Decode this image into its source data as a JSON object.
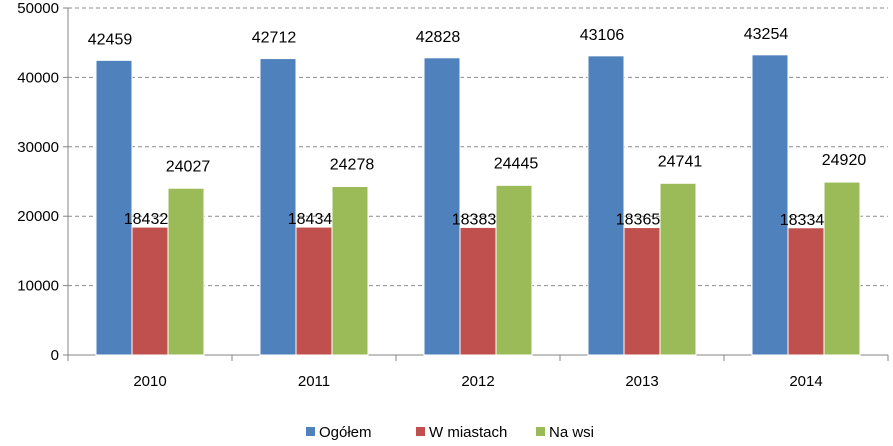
{
  "chart_data": {
    "type": "bar",
    "categories": [
      "2010",
      "2011",
      "2012",
      "2013",
      "2014"
    ],
    "series": [
      {
        "name": "Ogółem",
        "values": [
          42459,
          42712,
          42828,
          43106,
          43254
        ],
        "color": "#4F81BD"
      },
      {
        "name": "W miastach",
        "values": [
          18432,
          18434,
          18383,
          18365,
          18334
        ],
        "color": "#C0504D"
      },
      {
        "name": "Na wsi",
        "values": [
          24027,
          24278,
          24445,
          24741,
          24920
        ],
        "color": "#9BBB59"
      }
    ],
    "yticks": [
      "0",
      "10000",
      "20000",
      "30000",
      "40000",
      "50000"
    ],
    "ylim": [
      0,
      50000
    ],
    "grid": true,
    "legend_position": "bottom"
  }
}
